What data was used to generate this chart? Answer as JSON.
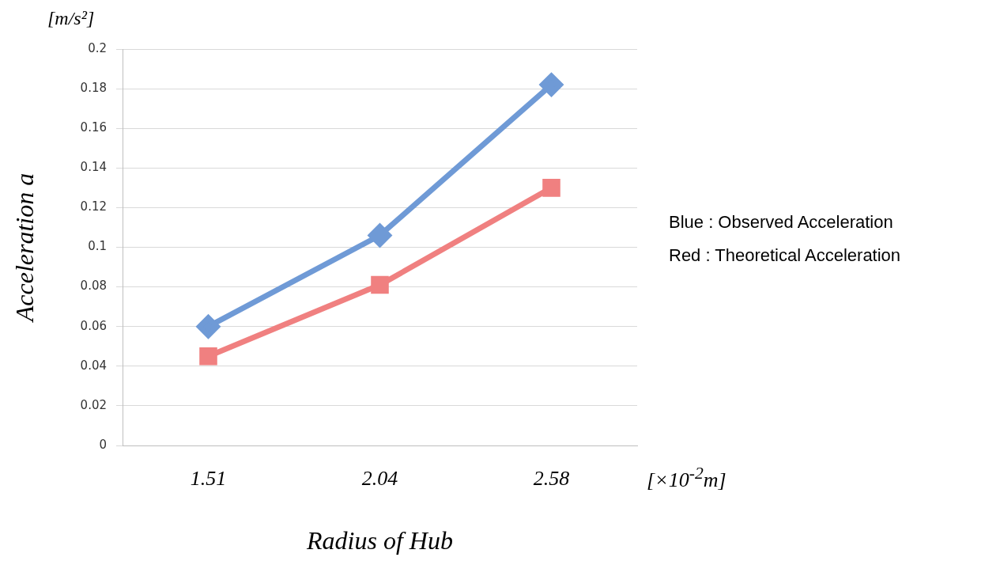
{
  "chart_data": {
    "type": "line",
    "xlabel": "Radius of Hub",
    "ylabel": "Acceleration a",
    "categories": [
      "1.51",
      "2.04",
      "2.58"
    ],
    "series": [
      {
        "color": "#6f9ad6",
        "marker": "diamond",
        "values": [
          0.06,
          0.106,
          0.182
        ]
      },
      {
        "color": "#f08080",
        "marker": "square",
        "values": [
          0.045,
          0.081,
          0.13
        ]
      }
    ],
    "ylim": [
      0,
      0.2
    ],
    "yticks": [
      0,
      0.02,
      0.04,
      0.06,
      0.08,
      0.1,
      0.12,
      0.14,
      0.16,
      0.18,
      0.2
    ],
    "grid": "y",
    "legend": false,
    "annotations": [
      "[m/s²]",
      "[×10$^{-2}$m]",
      "Blue : Observed Acceleration",
      "Red : Theoretical Acceleration"
    ]
  }
}
